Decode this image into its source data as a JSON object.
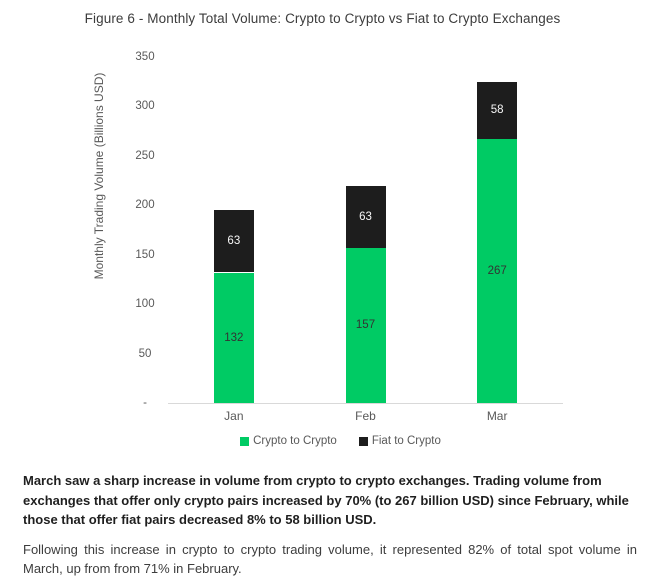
{
  "chart_data": {
    "type": "bar",
    "stacked": true,
    "title": "Figure 6 - Monthly Total Volume: Crypto to Crypto vs Fiat to Crypto Exchanges",
    "xlabel": "",
    "ylabel": "Monthly Trading Volume (Billions USD)",
    "categories": [
      "Jan",
      "Feb",
      "Mar"
    ],
    "series": [
      {
        "name": "Crypto to Crypto",
        "color": "#00cb64",
        "label_color": "#333333",
        "values": [
          132,
          157,
          267
        ]
      },
      {
        "name": "Fiat to Crypto",
        "color": "#1d1d1d",
        "label_color": "#f7f7f7",
        "values": [
          63,
          63,
          58
        ]
      }
    ],
    "totals": [
      195,
      220,
      325
    ],
    "ylim": [
      0,
      350
    ],
    "ytick_step": 50,
    "ytick_labels": [
      "-",
      "50",
      "100",
      "150",
      "200",
      "250",
      "300",
      "350"
    ],
    "grid": false,
    "legend_position": "bottom",
    "axis_color": "#d9d9d9",
    "tick_label_color": "#595959"
  },
  "body": {
    "paragraph_bold": "March saw a sharp increase in volume from crypto to crypto exchanges. Trading volume from exchanges that offer only crypto pairs increased by 70% (to 267 billion USD) since February, while those that offer fiat pairs decreased 8% to 58 billion USD.",
    "paragraph_regular": "Following this increase in crypto to crypto trading volume, it represented 82% of total spot volume in March, up from from 71% in February."
  }
}
